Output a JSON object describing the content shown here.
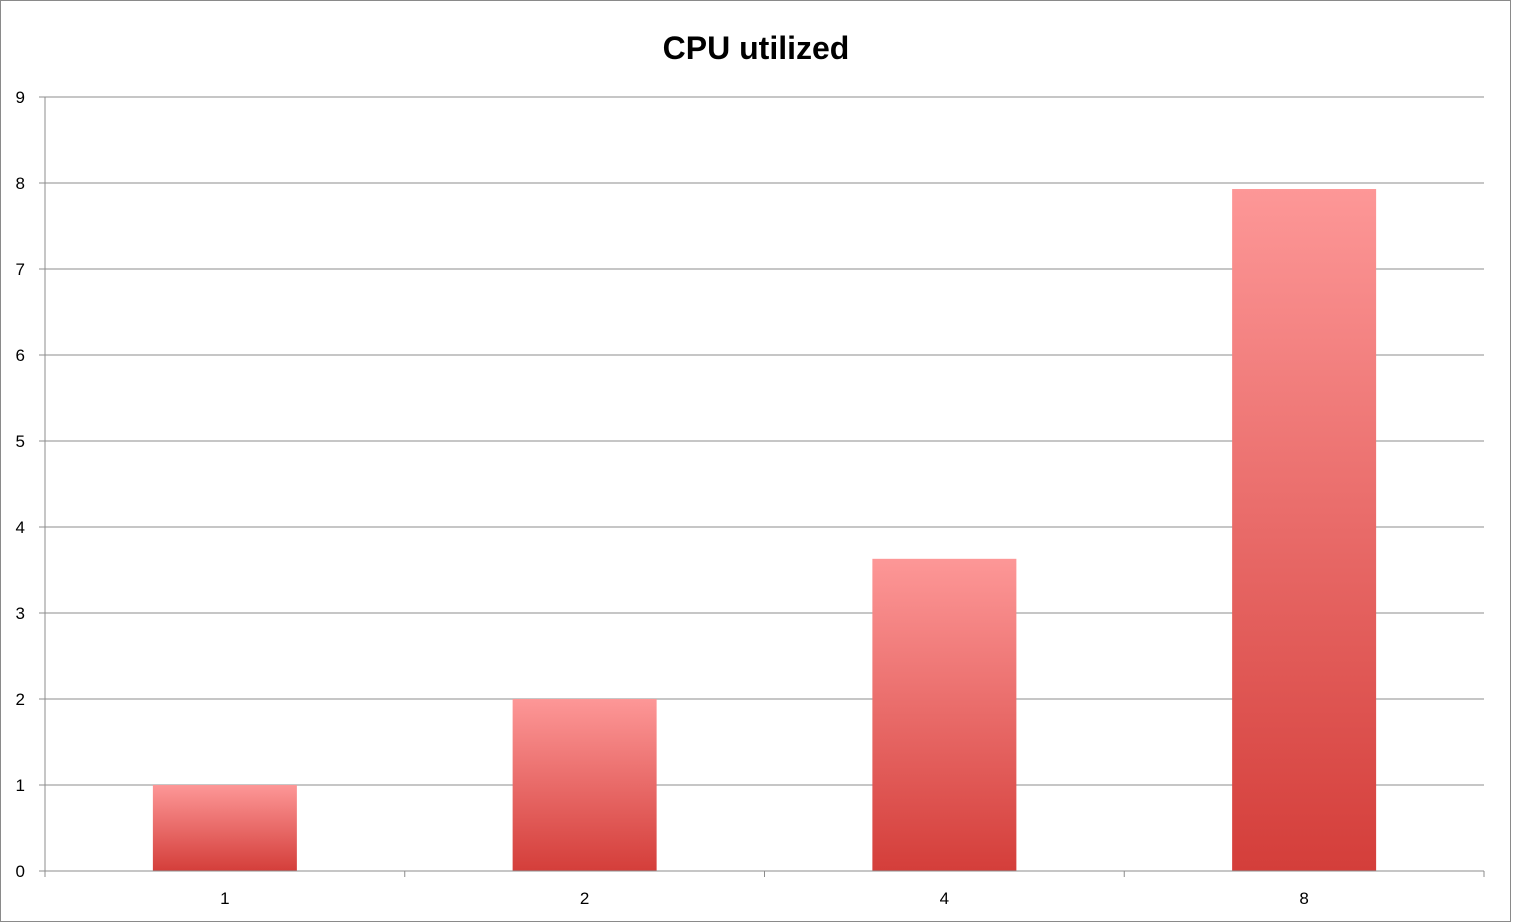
{
  "chart_data": {
    "type": "bar",
    "title": "CPU utilized",
    "xlabel": "",
    "ylabel": "",
    "categories": [
      "1",
      "2",
      "4",
      "8"
    ],
    "values": [
      1.0,
      2.0,
      3.63,
      7.93
    ],
    "ylim": [
      0,
      9
    ],
    "yticks": [
      "0",
      "1",
      "2",
      "3",
      "4",
      "5",
      "6",
      "7",
      "8",
      "9"
    ],
    "grid": "horizontal",
    "legend": "none",
    "colors": {
      "bar_top": "#fd9797",
      "bar_bottom": "#d43e3a",
      "gridline": "#8c8c8c",
      "axis": "#8c8c8c"
    }
  }
}
